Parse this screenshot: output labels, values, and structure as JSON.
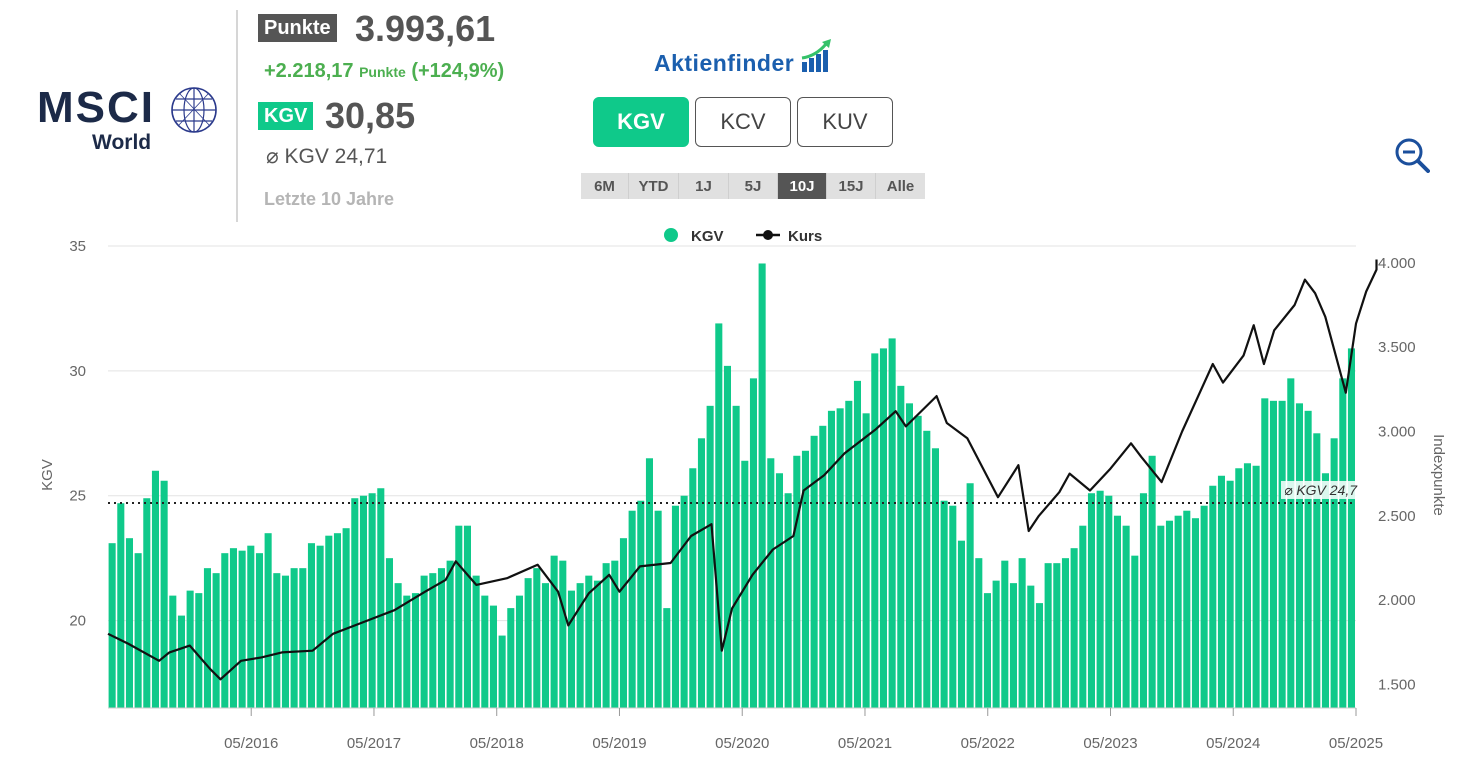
{
  "header": {
    "logo_main": "MSCI",
    "logo_sub": "World",
    "price_tag": "Punkte",
    "price": "3.993,61",
    "change": "+2.218,17",
    "change_unit": "Punkte",
    "change_pct": "(+124,9%)",
    "kgv_tag": "KGV",
    "kgv_value": "30,85",
    "avg_kgv": "⌀ KGV 24,71",
    "period_label": "Letzte 10 Jahre",
    "brand": "Aktienfinder"
  },
  "metric_tabs": [
    {
      "label": "KGV",
      "active": true
    },
    {
      "label": "KCV",
      "active": false
    },
    {
      "label": "KUV",
      "active": false
    }
  ],
  "period_tabs": [
    {
      "label": "6M",
      "active": false
    },
    {
      "label": "YTD",
      "active": false
    },
    {
      "label": "1J",
      "active": false
    },
    {
      "label": "5J",
      "active": false
    },
    {
      "label": "10J",
      "active": true
    },
    {
      "label": "15J",
      "active": false
    },
    {
      "label": "Alle",
      "active": false
    }
  ],
  "icons": {
    "zoom": "zoom-out-icon",
    "logo": "globe-icon"
  },
  "colors": {
    "kgv_bar": "#0fc98a",
    "kurs_line": "#111111",
    "accent": "#0fc98a",
    "brand": "#1b5fae",
    "positive": "#4caf50"
  },
  "chart_data": {
    "type": "bar",
    "legend": [
      {
        "name": "KGV",
        "marker": "circle",
        "color": "#0fc98a"
      },
      {
        "name": "Kurs",
        "marker": "line",
        "color": "#111111"
      }
    ],
    "legend_position": "top-center",
    "ylabel_left": "KGV",
    "ylabel_right": "Indexpunkte",
    "ylim_left": [
      16.5,
      35
    ],
    "ylim_right": [
      1360,
      4100
    ],
    "yticks_left": [
      "20",
      "25",
      "30",
      "35"
    ],
    "yticks_right": [
      "1.500",
      "2.000",
      "2.500",
      "3.000",
      "3.500",
      "4.000"
    ],
    "xticks": [
      "05/2016",
      "05/2017",
      "05/2018",
      "05/2019",
      "05/2020",
      "05/2021",
      "05/2022",
      "05/2023",
      "05/2024",
      "05/2025"
    ],
    "x_start": "2015-03",
    "x_end": "2025-05",
    "average_line": {
      "value": 24.71,
      "label": "⌀ KGV 24,7"
    },
    "series": [
      {
        "name": "KGV",
        "type": "bar",
        "values": [
          23.1,
          24.7,
          23.3,
          22.7,
          24.9,
          26.0,
          25.6,
          21.0,
          20.2,
          21.2,
          21.1,
          22.1,
          21.9,
          22.7,
          22.9,
          22.8,
          23.0,
          22.7,
          23.5,
          21.9,
          21.8,
          22.1,
          22.1,
          23.1,
          23.0,
          23.4,
          23.5,
          23.7,
          24.9,
          25.0,
          25.1,
          25.3,
          22.5,
          21.5,
          21.0,
          21.1,
          21.8,
          21.9,
          22.1,
          22.4,
          23.8,
          23.8,
          21.8,
          21.0,
          20.6,
          19.4,
          20.5,
          21.0,
          21.7,
          22.1,
          21.5,
          22.6,
          22.4,
          21.2,
          21.5,
          21.8,
          21.6,
          22.3,
          22.4,
          23.3,
          24.4,
          24.8,
          26.5,
          24.4,
          20.5,
          24.6,
          25.0,
          26.1,
          27.3,
          28.6,
          31.9,
          30.2,
          28.6,
          26.4,
          29.7,
          34.3,
          26.5,
          25.9,
          25.1,
          26.6,
          26.8,
          27.4,
          27.8,
          28.4,
          28.5,
          28.8,
          29.6,
          28.3,
          30.7,
          30.9,
          31.3,
          29.4,
          28.7,
          28.2,
          27.6,
          26.9,
          24.8,
          24.6,
          23.2,
          25.5,
          22.5,
          21.1,
          21.6,
          22.4,
          21.5,
          22.5,
          21.4,
          20.7,
          22.3,
          22.3,
          22.5,
          22.9,
          23.8,
          25.1,
          25.2,
          25.0,
          24.2,
          23.8,
          22.6,
          25.1,
          26.6,
          23.8,
          24.0,
          24.2,
          24.4,
          24.1,
          24.6,
          25.4,
          25.8,
          25.6,
          26.1,
          26.3,
          26.2,
          28.9,
          28.8,
          28.8,
          29.7,
          28.7,
          28.4,
          27.5,
          25.9,
          27.3,
          29.7,
          30.9
        ]
      },
      {
        "name": "Kurs",
        "type": "line",
        "points": [
          [
            "2015-03",
            1800
          ],
          [
            "2015-05",
            1740
          ],
          [
            "2015-08",
            1640
          ],
          [
            "2015-09",
            1690
          ],
          [
            "2015-11",
            1730
          ],
          [
            "2016-01",
            1590
          ],
          [
            "2016-02",
            1530
          ],
          [
            "2016-04",
            1640
          ],
          [
            "2016-06",
            1660
          ],
          [
            "2016-08",
            1690
          ],
          [
            "2016-11",
            1700
          ],
          [
            "2017-01",
            1800
          ],
          [
            "2017-04",
            1870
          ],
          [
            "2017-07",
            1940
          ],
          [
            "2017-10",
            2050
          ],
          [
            "2017-12",
            2120
          ],
          [
            "2018-01",
            2230
          ],
          [
            "2018-03",
            2090
          ],
          [
            "2018-06",
            2130
          ],
          [
            "2018-09",
            2210
          ],
          [
            "2018-11",
            2050
          ],
          [
            "2018-12",
            1850
          ],
          [
            "2019-02",
            2040
          ],
          [
            "2019-04",
            2150
          ],
          [
            "2019-05",
            2050
          ],
          [
            "2019-07",
            2200
          ],
          [
            "2019-10",
            2220
          ],
          [
            "2019-12",
            2380
          ],
          [
            "2020-02",
            2450
          ],
          [
            "2020-03",
            1700
          ],
          [
            "2020-04",
            1950
          ],
          [
            "2020-06",
            2150
          ],
          [
            "2020-08",
            2300
          ],
          [
            "2020-10",
            2380
          ],
          [
            "2020-11",
            2650
          ],
          [
            "2021-01",
            2740
          ],
          [
            "2021-03",
            2870
          ],
          [
            "2021-06",
            3010
          ],
          [
            "2021-08",
            3120
          ],
          [
            "2021-09",
            3030
          ],
          [
            "2021-12",
            3210
          ],
          [
            "2022-01",
            3050
          ],
          [
            "2022-03",
            2960
          ],
          [
            "2022-06",
            2610
          ],
          [
            "2022-08",
            2800
          ],
          [
            "2022-09",
            2410
          ],
          [
            "2022-10",
            2500
          ],
          [
            "2022-12",
            2640
          ],
          [
            "2023-01",
            2750
          ],
          [
            "2023-03",
            2650
          ],
          [
            "2023-05",
            2780
          ],
          [
            "2023-07",
            2930
          ],
          [
            "2023-08",
            2850
          ],
          [
            "2023-10",
            2700
          ],
          [
            "2023-12",
            3000
          ],
          [
            "2024-03",
            3400
          ],
          [
            "2024-04",
            3290
          ],
          [
            "2024-06",
            3450
          ],
          [
            "2024-07",
            3630
          ],
          [
            "2024-08",
            3400
          ],
          [
            "2024-09",
            3600
          ],
          [
            "2024-11",
            3750
          ],
          [
            "2024-12",
            3900
          ],
          [
            "2025-01",
            3820
          ],
          [
            "2025-02",
            3680
          ],
          [
            "2025-04",
            3230
          ],
          [
            "2025-05",
            3640
          ],
          [
            "2025-06",
            3830
          ],
          [
            "2025-07",
            3960
          ],
          [
            "2025-07",
            4020
          ]
        ]
      }
    ]
  }
}
